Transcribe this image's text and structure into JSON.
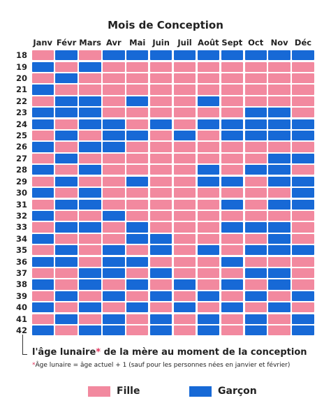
{
  "title": "Mois de Conception",
  "months": [
    "Janv",
    "Févr",
    "Mars",
    "Avr",
    "Mai",
    "Juin",
    "Juil",
    "Août",
    "Sept",
    "Oct",
    "Nov",
    "Déc"
  ],
  "ages": [
    "18",
    "19",
    "20",
    "21",
    "22",
    "23",
    "24",
    "25",
    "26",
    "27",
    "28",
    "29",
    "30",
    "31",
    "32",
    "33",
    "34",
    "35",
    "36",
    "37",
    "38",
    "39",
    "40",
    "41",
    "42"
  ],
  "grid": [
    "FGFGGGGGGGGG",
    "GFGFFFFFFFFF",
    "FGFFFFFFFFFF",
    "GFFFFFFFFFFF",
    "FGGFGFFGFFFF",
    "GGGFFFFFFGGF",
    "GFGGFGFGGGGG",
    "FGFGGFGFGGGG",
    "GFGGFFFFFFFF",
    "FGFFFFFFFFGG",
    "GFGFFFFGFGGF",
    "FGFFGFFGGFGG",
    "GFGFFFFFFFFG",
    "FGGFFFFFGFGG",
    "GFFGFFFFFFFF",
    "FGGFGFFFGGGF",
    "GFFFGGFFFFGF",
    "FGFGFGFGFGGG",
    "GGFGGFFFGFFF",
    "FFGGFGFFFGGF",
    "GFGFGFGFGFGF",
    "FGFGFGFGFGFG",
    "GFGFGFGFGFGF",
    "FGFGFGFGFGFG",
    "GFGGFGFGFGFG"
  ],
  "colors": {
    "fille": "#f2899f",
    "garcon": "#1769d6"
  },
  "caption": {
    "part1": "l'âge lunaire",
    "star": "*",
    "part2": " de la mère au moment de la conception"
  },
  "footnote": {
    "star": "*",
    "text": "Âge lunaire = âge actuel + 1 (sauf pour les personnes nées en janvier et février)"
  },
  "legend": {
    "fille": "Fille",
    "garcon": "Garçon"
  }
}
